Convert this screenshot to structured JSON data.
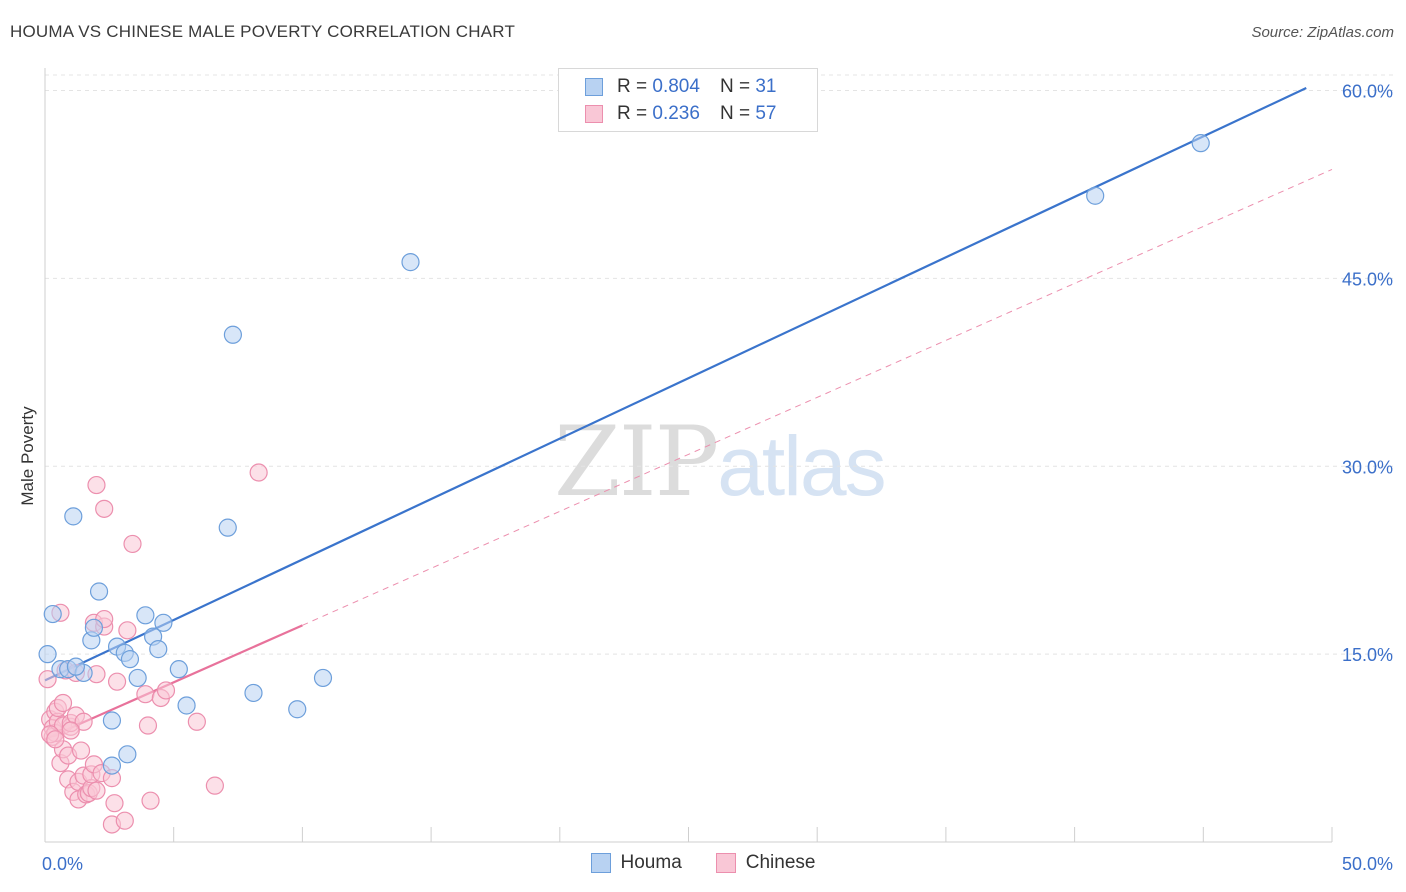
{
  "header": {
    "title": "HOUMA VS CHINESE MALE POVERTY CORRELATION CHART",
    "source": "Source: ZipAtlas.com"
  },
  "watermark": {
    "zip": "ZIP",
    "atlas": "atlas"
  },
  "stats": [
    {
      "r_label": "R =",
      "r_value": "0.804",
      "n_label": "N =",
      "n_value": "31"
    },
    {
      "r_label": "R =",
      "r_value": "0.236",
      "n_label": "N =",
      "n_value": "57"
    }
  ],
  "legend": {
    "houma": "Houma",
    "chinese": "Chinese"
  },
  "colors": {
    "houma_fill": "#b8d2f2",
    "houma_stroke": "#6d9fdb",
    "houma_line": "#3a74cc",
    "chinese_fill": "#f9c7d6",
    "chinese_stroke": "#ec8fae",
    "chinese_line": "#e8729b",
    "axis_label": "#3b6fc9",
    "grid": "#e4e4e4"
  },
  "chart_data": {
    "type": "scatter",
    "title": "HOUMA VS CHINESE MALE POVERTY CORRELATION CHART",
    "xlabel": "",
    "ylabel": "Male Poverty",
    "xlim": [
      0,
      50
    ],
    "ylim": [
      0,
      61
    ],
    "x_tick_labels": [
      "0.0%",
      "50.0%"
    ],
    "y_ticks": [
      15,
      30,
      45,
      60
    ],
    "y_tick_labels": [
      "15.0%",
      "30.0%",
      "45.0%",
      "60.0%"
    ],
    "grid": true,
    "legend_position": "bottom-center",
    "series": [
      {
        "name": "Houma",
        "points": [
          [
            0.1,
            15.0
          ],
          [
            0.3,
            18.2
          ],
          [
            0.6,
            13.8
          ],
          [
            0.9,
            13.8
          ],
          [
            1.1,
            26.0
          ],
          [
            1.5,
            13.5
          ],
          [
            1.8,
            16.1
          ],
          [
            1.9,
            17.1
          ],
          [
            2.1,
            20.0
          ],
          [
            2.6,
            6.1
          ],
          [
            2.6,
            9.7
          ],
          [
            2.8,
            15.6
          ],
          [
            3.1,
            15.1
          ],
          [
            3.2,
            7.0
          ],
          [
            3.3,
            14.6
          ],
          [
            3.6,
            13.1
          ],
          [
            3.9,
            18.1
          ],
          [
            4.2,
            16.4
          ],
          [
            4.4,
            15.4
          ],
          [
            4.6,
            17.5
          ],
          [
            5.2,
            13.8
          ],
          [
            5.5,
            10.9
          ],
          [
            7.1,
            25.1
          ],
          [
            7.3,
            40.5
          ],
          [
            8.1,
            11.9
          ],
          [
            9.8,
            10.6
          ],
          [
            10.8,
            13.1
          ],
          [
            14.2,
            46.3
          ],
          [
            40.8,
            51.6
          ],
          [
            44.9,
            55.8
          ],
          [
            1.2,
            14.0
          ]
        ],
        "trend": {
          "x": [
            0,
            49.0
          ],
          "y": [
            12.9,
            60.2
          ]
        }
      },
      {
        "name": "Chinese",
        "points": [
          [
            0.1,
            13.0
          ],
          [
            0.2,
            9.8
          ],
          [
            0.3,
            9.1
          ],
          [
            0.3,
            8.4
          ],
          [
            0.4,
            8.7
          ],
          [
            0.4,
            10.4
          ],
          [
            0.5,
            9.6
          ],
          [
            0.5,
            10.7
          ],
          [
            0.6,
            18.3
          ],
          [
            0.6,
            6.3
          ],
          [
            0.7,
            11.1
          ],
          [
            0.7,
            9.3
          ],
          [
            0.7,
            7.4
          ],
          [
            0.8,
            13.7
          ],
          [
            0.9,
            6.9
          ],
          [
            0.9,
            5.0
          ],
          [
            1.0,
            9.2
          ],
          [
            1.0,
            9.5
          ],
          [
            1.1,
            4.0
          ],
          [
            1.2,
            13.5
          ],
          [
            1.2,
            10.1
          ],
          [
            1.3,
            3.4
          ],
          [
            1.3,
            4.8
          ],
          [
            1.4,
            7.3
          ],
          [
            1.5,
            5.3
          ],
          [
            1.5,
            9.6
          ],
          [
            1.6,
            3.8
          ],
          [
            1.7,
            3.9
          ],
          [
            1.8,
            4.3
          ],
          [
            1.8,
            5.4
          ],
          [
            1.9,
            6.2
          ],
          [
            1.9,
            17.5
          ],
          [
            2.0,
            4.1
          ],
          [
            2.0,
            13.4
          ],
          [
            2.0,
            28.5
          ],
          [
            2.2,
            5.5
          ],
          [
            2.3,
            26.6
          ],
          [
            2.3,
            17.2
          ],
          [
            2.3,
            17.8
          ],
          [
            2.6,
            1.4
          ],
          [
            2.6,
            5.1
          ],
          [
            2.7,
            3.1
          ],
          [
            2.8,
            12.8
          ],
          [
            3.1,
            1.7
          ],
          [
            3.2,
            16.9
          ],
          [
            3.4,
            23.8
          ],
          [
            3.9,
            11.8
          ],
          [
            4.0,
            9.3
          ],
          [
            4.1,
            3.3
          ],
          [
            4.5,
            11.5
          ],
          [
            4.7,
            12.1
          ],
          [
            5.9,
            9.6
          ],
          [
            6.6,
            4.5
          ],
          [
            8.3,
            29.5
          ],
          [
            0.2,
            8.6
          ],
          [
            0.4,
            8.2
          ],
          [
            1.0,
            8.9
          ]
        ],
        "trend": {
          "x": [
            0,
            10.0
          ],
          "y": [
            8.2,
            17.3
          ]
        },
        "trend_extended": {
          "x": [
            10.0,
            50.0
          ],
          "y": [
            17.3,
            53.7
          ]
        }
      }
    ]
  }
}
